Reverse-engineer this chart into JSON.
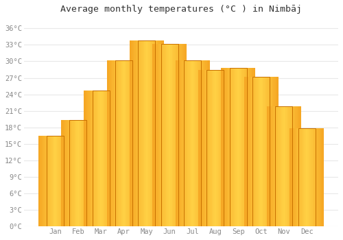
{
  "months": [
    "Jan",
    "Feb",
    "Mar",
    "Apr",
    "May",
    "Jun",
    "Jul",
    "Aug",
    "Sep",
    "Oct",
    "Nov",
    "Dec"
  ],
  "values": [
    16.5,
    19.3,
    24.7,
    30.2,
    33.8,
    33.2,
    30.2,
    28.4,
    28.8,
    27.2,
    21.8,
    17.8
  ],
  "title": "Average monthly temperatures (°C ) in Nimbāj",
  "title_fontsize": 9.5,
  "ylim": [
    0,
    38
  ],
  "yticks": [
    0,
    3,
    6,
    9,
    12,
    15,
    18,
    21,
    24,
    27,
    30,
    33,
    36
  ],
  "background_color": "#FFFFFF",
  "grid_color": "#E8E8E8",
  "tick_label_color": "#888888",
  "bar_center_color": "#FFD044",
  "bar_edge_color": "#F5A623",
  "bar_outline_color": "#C87000",
  "bar_width": 0.75
}
